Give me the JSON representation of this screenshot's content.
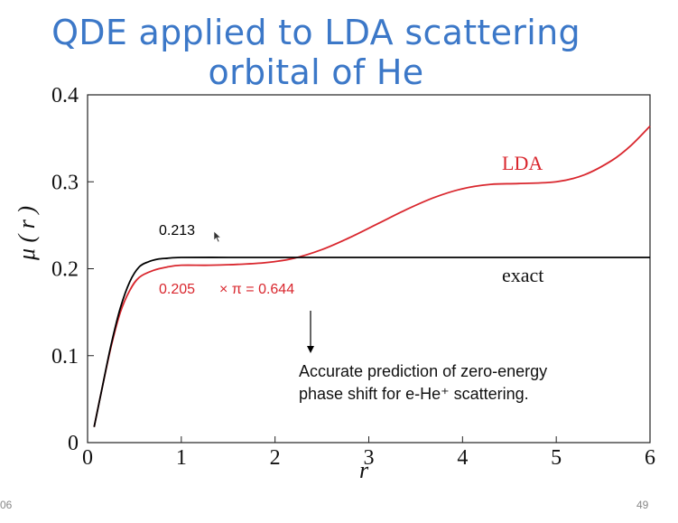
{
  "slide": {
    "title_line1": "QDE applied to LDA scattering",
    "title_line2": "orbital of He",
    "footer_left": "06",
    "page_number": "49"
  },
  "colors": {
    "title": "#3c78c8",
    "lda": "#d9272e",
    "exact": "#000000"
  },
  "annotations": {
    "exact_value": "0.213",
    "lda_value": "0.205",
    "lda_times_pi": "× π = 0.644",
    "note_line1": "Accurate prediction of zero-energy",
    "note_line2": "phase shift for e-He⁺ scattering."
  },
  "chart_data": {
    "type": "line",
    "xlabel": "r",
    "ylabel": "μ ( r )",
    "xlim": [
      0,
      6
    ],
    "ylim": [
      0,
      0.4
    ],
    "xticks": [
      "0",
      "1",
      "2",
      "3",
      "4",
      "5",
      "6"
    ],
    "yticks": [
      "0",
      "0.1",
      "0.2",
      "0.3",
      "0.4"
    ],
    "series": [
      {
        "name": "LDA",
        "color": "#d9272e",
        "x": [
          0.07,
          0.15,
          0.25,
          0.35,
          0.45,
          0.55,
          0.7,
          0.85,
          1.0,
          1.3,
          1.6,
          1.9,
          2.2,
          2.5,
          2.8,
          3.1,
          3.4,
          3.7,
          4.0,
          4.3,
          4.6,
          5.0,
          5.3,
          5.6,
          5.8,
          6.0
        ],
        "y": [
          0.018,
          0.06,
          0.11,
          0.15,
          0.175,
          0.19,
          0.198,
          0.202,
          0.204,
          0.204,
          0.205,
          0.207,
          0.212,
          0.222,
          0.236,
          0.252,
          0.268,
          0.282,
          0.292,
          0.297,
          0.298,
          0.3,
          0.308,
          0.325,
          0.342,
          0.364
        ]
      },
      {
        "name": "exact",
        "color": "#000000",
        "x": [
          0.07,
          0.15,
          0.25,
          0.35,
          0.45,
          0.55,
          0.65,
          0.75,
          0.85,
          1.0,
          1.5,
          2.0,
          3.0,
          4.0,
          5.0,
          6.0
        ],
        "y": [
          0.018,
          0.06,
          0.112,
          0.155,
          0.185,
          0.202,
          0.208,
          0.211,
          0.212,
          0.213,
          0.213,
          0.213,
          0.213,
          0.213,
          0.213,
          0.213
        ]
      }
    ]
  }
}
